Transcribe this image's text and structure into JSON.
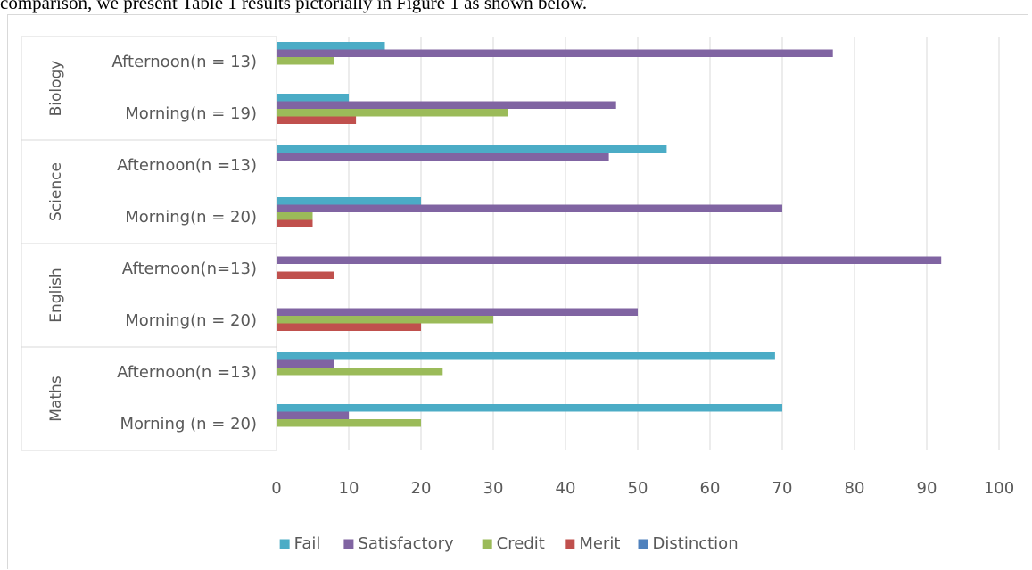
{
  "caption": "comparison, we present Table 1 results pictorially in Figure 1 as shown below.",
  "chart_data": {
    "type": "bar",
    "orientation": "horizontal",
    "x_ticks": [
      "0",
      "10",
      "20",
      "30",
      "40",
      "50",
      "60",
      "70",
      "80",
      "90",
      "100"
    ],
    "xlim": [
      0,
      100
    ],
    "grid": true,
    "legend_position": "bottom",
    "groups": [
      {
        "name": "Biology",
        "categories": [
          "Afternoon(n = 13)",
          "Morning(n = 19)"
        ]
      },
      {
        "name": "Science",
        "categories": [
          "Afternoon(n =13)",
          "Morning(n = 20)"
        ]
      },
      {
        "name": "English",
        "categories": [
          "Afternoon(n=13)",
          "Morning(n = 20)"
        ]
      },
      {
        "name": "Maths",
        "categories": [
          "Afternoon(n =13)",
          "Morning (n = 20)"
        ]
      }
    ],
    "categories": [
      "Biology Afternoon(n = 13)",
      "Biology Morning(n = 19)",
      "Science Afternoon(n =13)",
      "Science Morning(n = 20)",
      "English Afternoon(n=13)",
      "English Morning(n = 20)",
      "Maths Afternoon(n =13)",
      "Maths Morning (n = 20)"
    ],
    "series": [
      {
        "name": "Fail",
        "color": "#4bacc6",
        "values": [
          15,
          10,
          54,
          20,
          0,
          0,
          69,
          70
        ]
      },
      {
        "name": "Satisfactory",
        "color": "#8064a2",
        "values": [
          77,
          47,
          46,
          70,
          92,
          50,
          8,
          10
        ]
      },
      {
        "name": "Credit",
        "color": "#9bbb59",
        "values": [
          8,
          32,
          0,
          5,
          0,
          30,
          23,
          20
        ]
      },
      {
        "name": "Merit",
        "color": "#c0504d",
        "values": [
          0,
          11,
          0,
          5,
          8,
          20,
          0,
          0
        ]
      },
      {
        "name": "Distinction",
        "color": "#4f81bd",
        "values": [
          0,
          0,
          0,
          0,
          0,
          0,
          0,
          0
        ]
      }
    ]
  }
}
